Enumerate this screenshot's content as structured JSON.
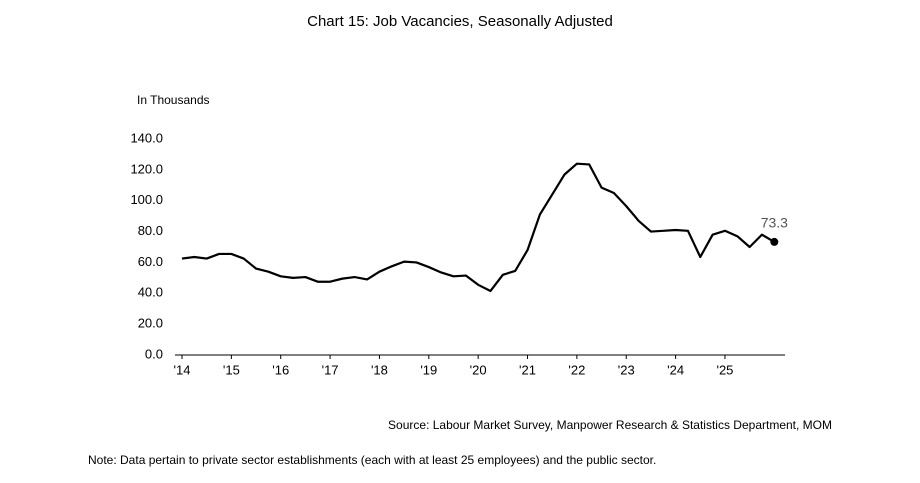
{
  "chart_data": {
    "type": "line",
    "title": "Chart 15: Job Vacancies, Seasonally Adjusted",
    "y_label": "In Thousands",
    "source": "Source: Labour Market Survey, Manpower Research & Statistics Department, MOM",
    "note": "Note: Data pertain to private sector establishments (each with at least 25 employees) and the public sector.",
    "categories": [
      "'14",
      null,
      null,
      null,
      "'15",
      null,
      null,
      null,
      "'16",
      null,
      null,
      null,
      "'17",
      null,
      null,
      null,
      "'18",
      null,
      null,
      null,
      "'19",
      null,
      null,
      null,
      "'20",
      null,
      null,
      null,
      "'21",
      null,
      null,
      null,
      "'22",
      null,
      null,
      null,
      "'23",
      null,
      null,
      null,
      "'24",
      null,
      null,
      null,
      "'25",
      null,
      null,
      null,
      null
    ],
    "series": [
      {
        "name": "Job Vacancies",
        "color": "#000000",
        "values": [
          62.5,
          63.5,
          62.5,
          65.5,
          65.5,
          62.5,
          56,
          54,
          51,
          50,
          50.5,
          47.5,
          47.5,
          49.5,
          50.5,
          49,
          54,
          57.5,
          60.5,
          60,
          57,
          53.5,
          51,
          51.5,
          45.5,
          41.5,
          52,
          54.5,
          68,
          91,
          104,
          117,
          124,
          123.5,
          108.5,
          105,
          96.5,
          87,
          80,
          80.5,
          81,
          80.5,
          63.5,
          78,
          80.5,
          77,
          70,
          78,
          73.3
        ]
      }
    ],
    "ylim": [
      0,
      140
    ],
    "yticks": [
      {
        "value": 0,
        "label": "0.0"
      },
      {
        "value": 20,
        "label": "20.0"
      },
      {
        "value": 40,
        "label": "40.0"
      },
      {
        "value": 60,
        "label": "60.0"
      },
      {
        "value": 80,
        "label": "80.0"
      },
      {
        "value": 100,
        "label": "100.0"
      },
      {
        "value": 120,
        "label": "120.0"
      },
      {
        "value": 140,
        "label": "140.0"
      }
    ],
    "grid": false
  }
}
